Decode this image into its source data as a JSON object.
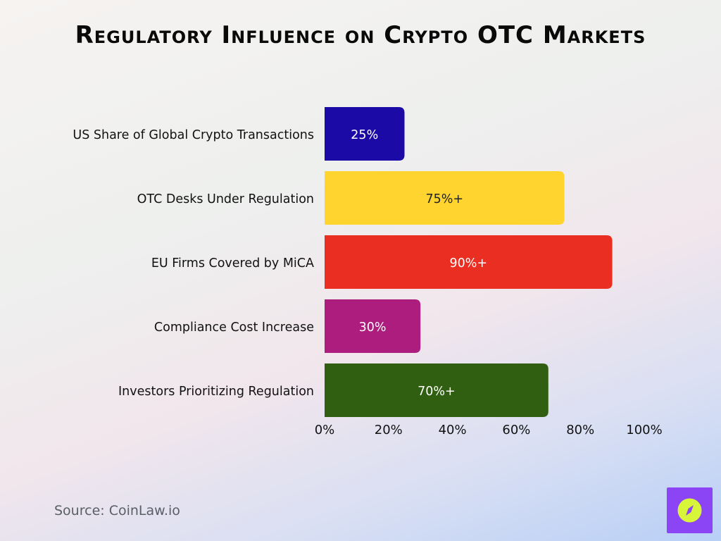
{
  "title": "Regulatory Influence on Crypto OTC Markets",
  "source": "Source: CoinLaw.io",
  "chart_data": {
    "type": "bar",
    "orientation": "horizontal",
    "categories": [
      "US Share of Global Crypto Transactions",
      "OTC Desks Under Regulation",
      "EU Firms Covered by MiCA",
      "Compliance Cost Increase",
      "Investors Prioritizing Regulation"
    ],
    "values": [
      25,
      75,
      90,
      30,
      70
    ],
    "data_labels": [
      "25%",
      "75%+",
      "90%+",
      "30%",
      "70%+"
    ],
    "colors": [
      "#1c0aa6",
      "#ffd42e",
      "#ea2f22",
      "#ad1d7d",
      "#315f12"
    ],
    "label_colors": [
      "#ffffff",
      "#222222",
      "#ffffff",
      "#ffffff",
      "#ffffff"
    ],
    "xlim": [
      0,
      100
    ],
    "xticks": [
      "0%",
      "20%",
      "40%",
      "60%",
      "80%",
      "100%"
    ],
    "xtick_values": [
      0,
      20,
      40,
      60,
      80,
      100
    ],
    "grid": false,
    "legend": "none"
  },
  "logo": {
    "icon": "compass-icon",
    "bg": "#8b45f5",
    "circle": "#d8f53a"
  }
}
